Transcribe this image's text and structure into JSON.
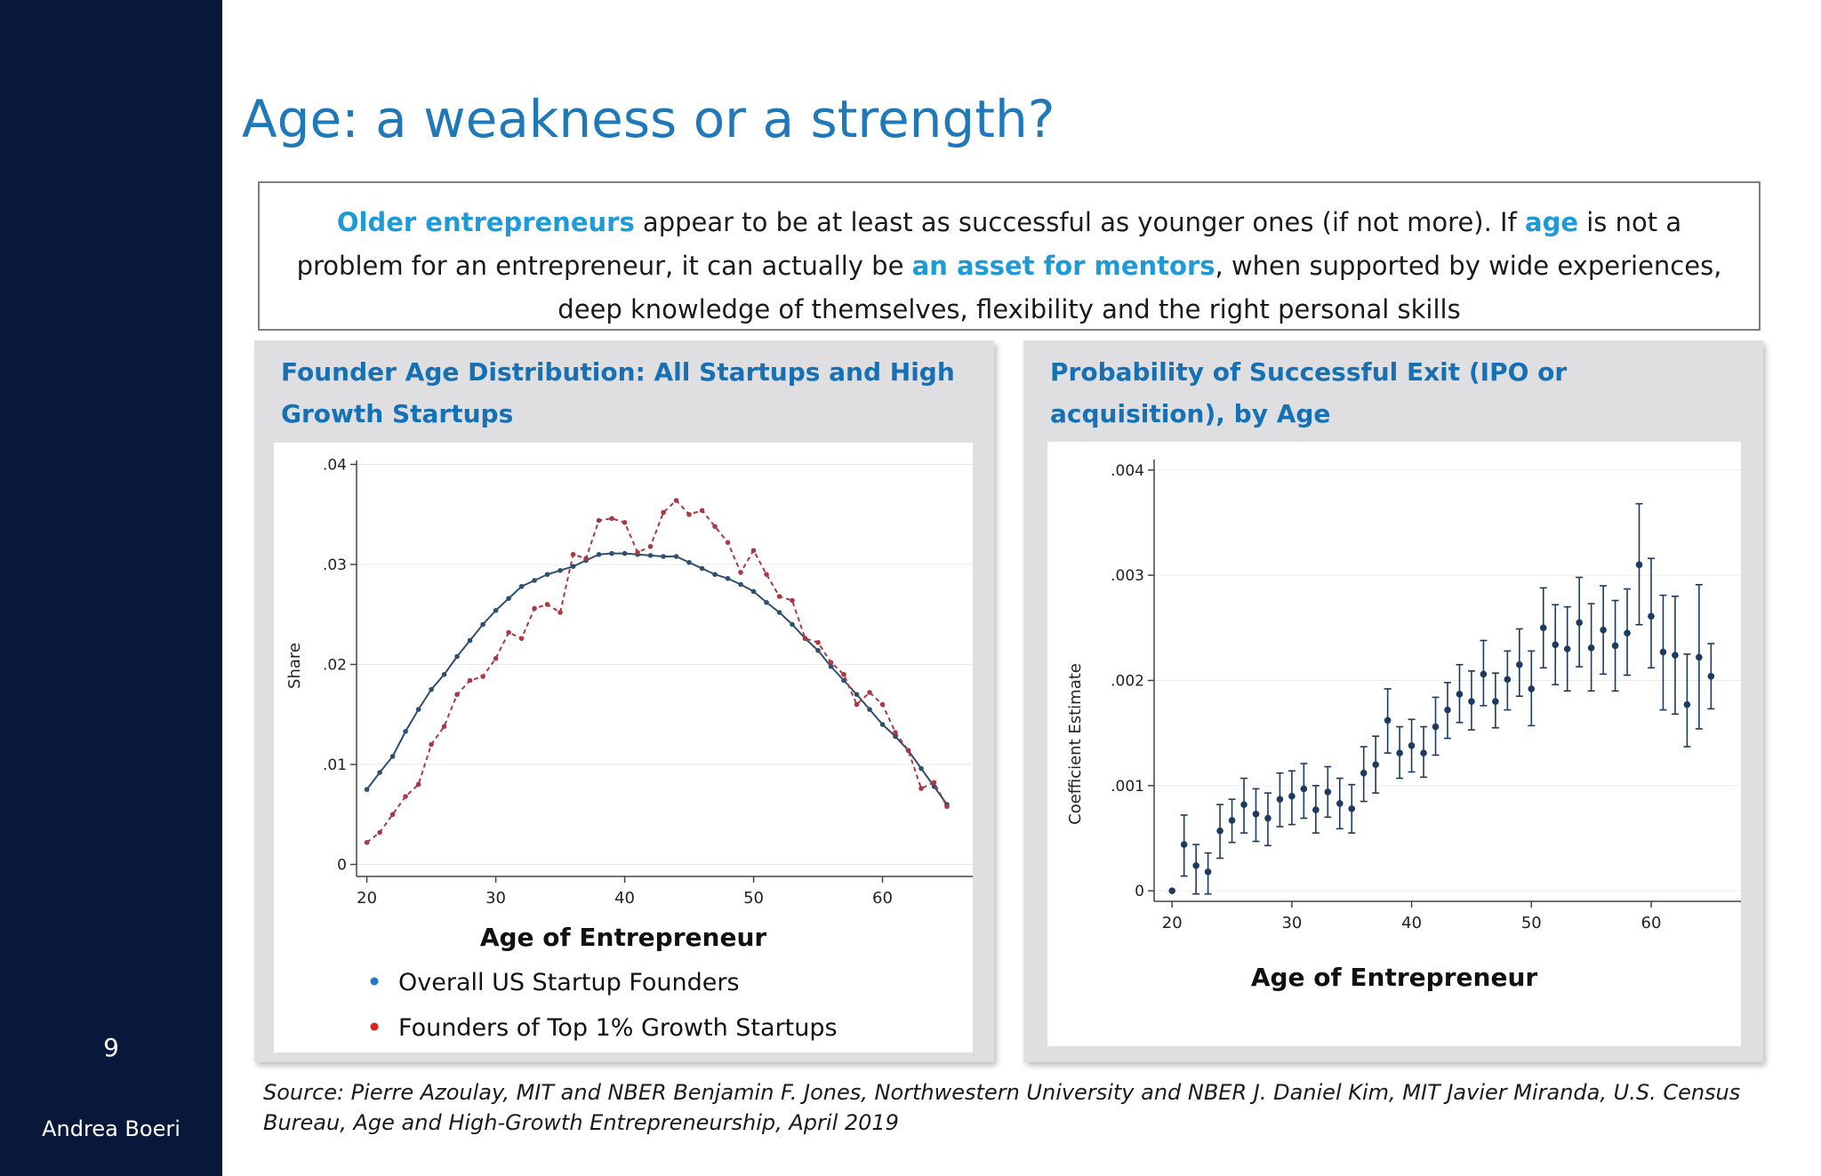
{
  "sidebar": {
    "page_number": "9",
    "author": "Andrea Boeri"
  },
  "title": "Age: a weakness or a strength?",
  "summary": {
    "hl1": "Older entrepreneurs",
    "t1": " appear to be at least as successful as younger ones (if not more). If ",
    "hl2": "age",
    "t2": " is not  a problem for an entrepreneur, it can actually be ",
    "hl3": "an asset for mentors",
    "t3": ", when supported by wide experiences, deep knowledge of themselves, flexibility and the right personal skills"
  },
  "colors": {
    "sidebar": "#07183a",
    "title": "#1f78b8",
    "highlight": "#1e9bd7",
    "overall": "#2e4f6e",
    "top1": "#a83a45",
    "points": "#1c3b5e"
  },
  "chart_data": [
    {
      "type": "line",
      "panel_title": "Founder Age Distribution: All Startups and High Growth Startups",
      "xlabel": "Age of Entrepreneur",
      "ylabel": "Share",
      "xlim": [
        19.2,
        67
      ],
      "ylim": [
        -0.0012,
        0.0404
      ],
      "xticks": [
        "20",
        "30",
        "40",
        "50",
        "60"
      ],
      "yticks": [
        "0",
        ".01",
        ".02",
        ".03",
        ".04"
      ],
      "x": [
        20,
        21,
        22,
        23,
        24,
        25,
        26,
        27,
        28,
        29,
        30,
        31,
        32,
        33,
        34,
        35,
        36,
        37,
        38,
        39,
        40,
        41,
        42,
        43,
        44,
        45,
        46,
        47,
        48,
        49,
        50,
        51,
        52,
        53,
        54,
        55,
        56,
        57,
        58,
        59,
        60,
        61,
        62,
        63,
        64,
        65
      ],
      "series": [
        {
          "name": "Overall US Startup Founders",
          "style": "solid",
          "color": "#2e4f6e",
          "values": [
            0.0075,
            0.0092,
            0.0108,
            0.0133,
            0.0155,
            0.0175,
            0.019,
            0.0208,
            0.0224,
            0.024,
            0.0254,
            0.0266,
            0.0278,
            0.0284,
            0.029,
            0.0294,
            0.0298,
            0.0304,
            0.031,
            0.0311,
            0.0311,
            0.031,
            0.0309,
            0.0308,
            0.0308,
            0.0302,
            0.0296,
            0.029,
            0.0286,
            0.028,
            0.0273,
            0.0262,
            0.0252,
            0.024,
            0.0226,
            0.0214,
            0.0198,
            0.0184,
            0.017,
            0.0155,
            0.014,
            0.0128,
            0.0114,
            0.0096,
            0.0078,
            0.006
          ]
        },
        {
          "name": "Founders of Top 1% Growth Startups",
          "style": "dashed",
          "color": "#a83a45",
          "values": [
            0.0022,
            0.0032,
            0.005,
            0.0068,
            0.008,
            0.012,
            0.0138,
            0.017,
            0.0184,
            0.0188,
            0.0206,
            0.0232,
            0.0226,
            0.0256,
            0.026,
            0.0252,
            0.031,
            0.0306,
            0.0344,
            0.0346,
            0.0342,
            0.0312,
            0.0318,
            0.0352,
            0.0364,
            0.035,
            0.0354,
            0.0338,
            0.0322,
            0.0292,
            0.0314,
            0.029,
            0.0268,
            0.0264,
            0.0226,
            0.0222,
            0.0202,
            0.019,
            0.016,
            0.0172,
            0.016,
            0.0132,
            0.0114,
            0.0076,
            0.0082,
            0.0058
          ]
        }
      ]
    },
    {
      "type": "scatter",
      "panel_title": "Probability of Successful Exit (IPO or acquisition), by Age",
      "xlabel": "Age of Entrepreneur",
      "ylabel": "Coefficient Estimate",
      "xlim": [
        18.5,
        67.5
      ],
      "ylim": [
        -0.0001,
        0.0041
      ],
      "xticks": [
        "20",
        "30",
        "40",
        "50",
        "60"
      ],
      "yticks": [
        "0",
        ".001",
        ".002",
        ".003",
        ".004"
      ],
      "x": [
        20,
        21,
        22,
        23,
        24,
        25,
        26,
        27,
        28,
        29,
        30,
        31,
        32,
        33,
        34,
        35,
        36,
        37,
        38,
        39,
        40,
        41,
        42,
        43,
        44,
        45,
        46,
        47,
        48,
        49,
        50,
        51,
        52,
        53,
        54,
        55,
        56,
        57,
        58,
        59,
        60,
        61,
        62,
        63,
        64,
        65
      ],
      "y": [
        0,
        0.00044,
        0.00024,
        0.00018,
        0.00057,
        0.00067,
        0.00082,
        0.00073,
        0.00069,
        0.00087,
        0.0009,
        0.00097,
        0.00077,
        0.00094,
        0.00083,
        0.00078,
        0.00112,
        0.0012,
        0.00162,
        0.00131,
        0.00138,
        0.00131,
        0.00156,
        0.00172,
        0.00187,
        0.0018,
        0.00206,
        0.0018,
        0.00201,
        0.00215,
        0.00192,
        0.0025,
        0.00234,
        0.0023,
        0.00255,
        0.00231,
        0.00248,
        0.00233,
        0.00245,
        0.0031,
        0.00261,
        0.00227,
        0.00224,
        0.00177,
        0.00222,
        0.00204
      ],
      "ci_low": [
        0,
        0.00014,
        -3e-05,
        -3e-05,
        0.00031,
        0.00046,
        0.00055,
        0.00047,
        0.00043,
        0.00061,
        0.00063,
        0.00069,
        0.00055,
        0.0007,
        0.00059,
        0.00055,
        0.00085,
        0.00093,
        0.00131,
        0.00107,
        0.00113,
        0.00108,
        0.00129,
        0.00145,
        0.0016,
        0.00153,
        0.00176,
        0.00155,
        0.00172,
        0.00185,
        0.00157,
        0.00212,
        0.00196,
        0.0019,
        0.00213,
        0.0019,
        0.00206,
        0.0019,
        0.00205,
        0.00253,
        0.00212,
        0.00172,
        0.00168,
        0.00137,
        0.00154,
        0.00173
      ],
      "ci_high": [
        0,
        0.00072,
        0.00044,
        0.00036,
        0.00082,
        0.00087,
        0.00107,
        0.00097,
        0.00093,
        0.00112,
        0.00114,
        0.00121,
        0.001,
        0.00118,
        0.00107,
        0.00101,
        0.00137,
        0.00147,
        0.00192,
        0.00156,
        0.00163,
        0.00156,
        0.00184,
        0.00198,
        0.00215,
        0.00209,
        0.00238,
        0.00207,
        0.00228,
        0.00249,
        0.00228,
        0.00288,
        0.00272,
        0.0027,
        0.00298,
        0.00273,
        0.0029,
        0.00276,
        0.00287,
        0.00368,
        0.00316,
        0.00281,
        0.0028,
        0.00225,
        0.00291,
        0.00235
      ]
    }
  ],
  "legend": {
    "overall": "Overall US Startup Founders",
    "top1": "Founders of Top 1% Growth Startups",
    "overall_color": "#1f78c8",
    "top1_color": "#e02020"
  },
  "source": "Source: Pierre Azoulay, MIT and NBER Benjamin F. Jones, Northwestern University and NBER J. Daniel Kim, MIT Javier Miranda, U.S. Census Bureau, Age and High-Growth Entrepreneurship, April 2019"
}
